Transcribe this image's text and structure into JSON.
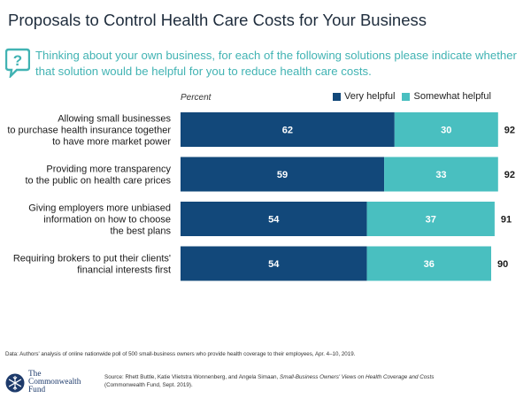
{
  "header": {
    "title": "Proposals to Control Health Care Costs for Your Business",
    "question": "Thinking about your own business, for each of the following solutions please indicate whether that solution would be helpful for you to reduce health care costs."
  },
  "chart_data": {
    "type": "bar",
    "orientation": "horizontal",
    "stacked": true,
    "unit_label": "Percent",
    "categories": [
      "Allowing small businesses to purchase health insurance together to have more market power",
      "Providing more transparency to the public on health care prices",
      "Giving employers more unbiased information on how to choose the best plans",
      "Requiring brokers to put their clients' financial interests first"
    ],
    "category_lines": [
      [
        "Allowing small businesses",
        "to purchase health insurance together",
        "to have more market power"
      ],
      [
        "Providing more transparency",
        "to the public on health care prices"
      ],
      [
        "Giving employers more unbiased",
        "information on how to choose",
        "the best plans"
      ],
      [
        "Requiring brokers to put their clients'",
        "financial interests first"
      ]
    ],
    "series": [
      {
        "name": "Very helpful",
        "values": [
          62,
          59,
          54,
          54
        ],
        "color": "#12487a"
      },
      {
        "name": "Somewhat helpful",
        "values": [
          30,
          33,
          37,
          36
        ],
        "color": "#49bfc0"
      }
    ],
    "totals": [
      92,
      92,
      91,
      90
    ],
    "xlim": [
      0,
      100
    ],
    "legend_position": "top-right",
    "grid": false
  },
  "footer": {
    "data_note": "Data: Authors' analysis of online nationwide poll of 500 small-business owners who provide health coverage to their employees, Apr. 4–10, 2019.",
    "source_prefix": "Source: Rhett Buttle, Katie Vlietstra Wonnenberg, and Angela Simaan, ",
    "source_title": "Small-Business Owners' Views on Health Coverage and Costs",
    "source_suffix": "(Commonwealth Fund, Sept. 2019).",
    "logo_line1": "The",
    "logo_line2": "Commonwealth",
    "logo_line3": "Fund"
  },
  "icons": {
    "question": "question-speech-bubble-icon",
    "logo": "snowflake-seal-icon"
  }
}
